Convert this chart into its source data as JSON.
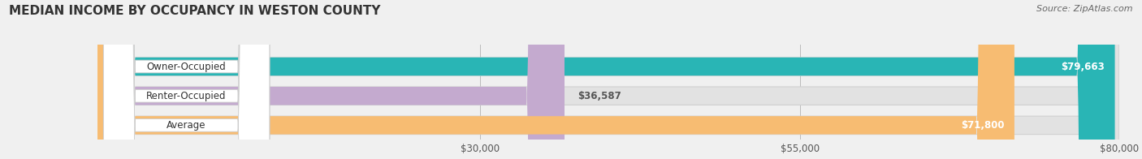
{
  "title": "MEDIAN INCOME BY OCCUPANCY IN WESTON COUNTY",
  "source": "Source: ZipAtlas.com",
  "categories": [
    "Owner-Occupied",
    "Renter-Occupied",
    "Average"
  ],
  "values": [
    79663,
    36587,
    71800
  ],
  "labels": [
    "$79,663",
    "$36,587",
    "$71,800"
  ],
  "bar_colors": [
    "#29b5b5",
    "#c4aacf",
    "#f7bc72"
  ],
  "xmax": 80000,
  "xticks": [
    30000,
    55000,
    80000
  ],
  "xtick_labels": [
    "$30,000",
    "$55,000",
    "$80,000"
  ],
  "bg_color": "#f0f0f0",
  "title_fontsize": 11,
  "label_fontsize": 8.5,
  "value_fontsize": 8.5,
  "source_fontsize": 8,
  "figsize": [
    14.06,
    1.96
  ],
  "dpi": 100
}
